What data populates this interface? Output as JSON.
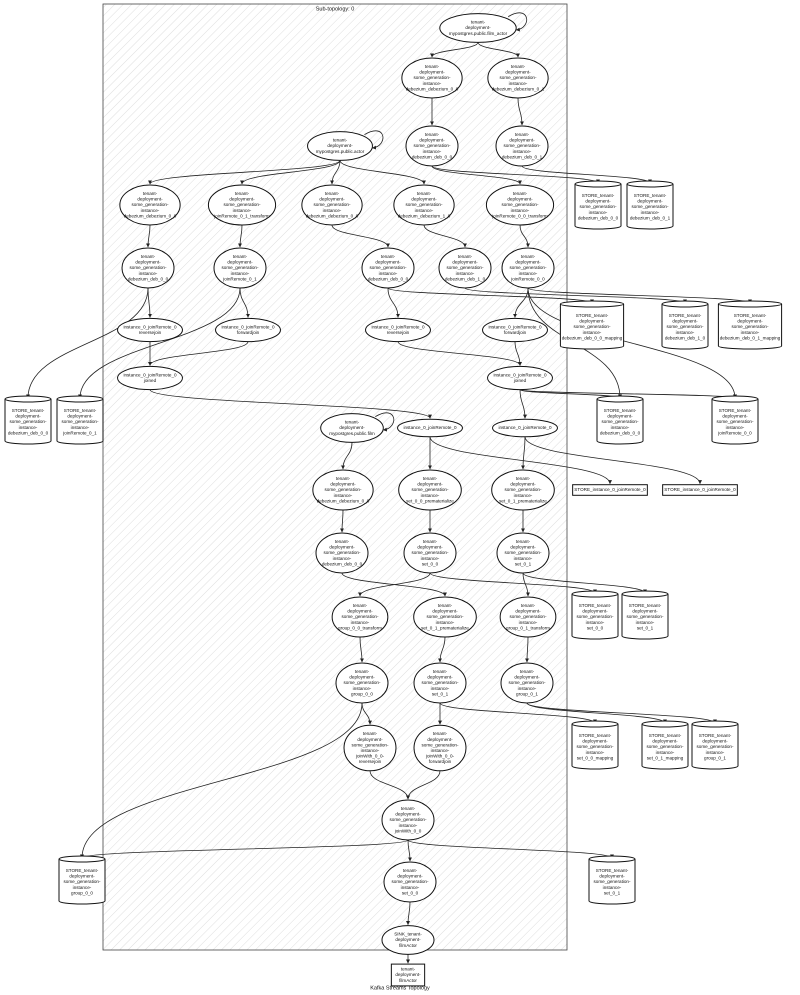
{
  "title": "Sub-topology: 0",
  "caption": "Kafka Streams Topology",
  "nodes": [
    {
      "lines": [
        "tenant-",
        "deployment-",
        "mypostgres.public.film_actor"
      ]
    },
    {
      "lines": [
        "tenant-",
        "deployment-",
        "some_generation-",
        "instance-",
        "debezium_debezium_0_0"
      ]
    },
    {
      "lines": [
        "tenant-",
        "deployment-",
        "some_generation-",
        "instance-",
        "debezium_debezium_0_1"
      ]
    },
    {
      "lines": [
        "tenant-",
        "deployment-",
        "mypostgres.public.actor"
      ]
    },
    {
      "lines": [
        "tenant-",
        "deployment-",
        "some_generation-",
        "instance-",
        "debezium_deb_0_0"
      ]
    },
    {
      "lines": [
        "tenant-",
        "deployment-",
        "some_generation-",
        "instance-",
        "debezium_deb_0_1"
      ]
    },
    {
      "lines": [
        "STORE_tenant-",
        "deployment-",
        "some_generation-",
        "instance-",
        "debezium_deb_0_0"
      ]
    },
    {
      "lines": [
        "STORE_tenant-",
        "deployment-",
        "some_generation-",
        "instance-",
        "debezium_deb_0_1"
      ]
    },
    {
      "lines": [
        "tenant-",
        "deployment-",
        "some_generation-",
        "instance-",
        "debezium_debezium_0_0"
      ]
    },
    {
      "lines": [
        "tenant-",
        "deployment-",
        "some_generation-",
        "instance-",
        "joinRemote_0_1_transform"
      ]
    },
    {
      "lines": [
        "tenant-",
        "deployment-",
        "some_generation-",
        "instance-",
        "debezium_debezium_0_0"
      ]
    },
    {
      "lines": [
        "tenant-",
        "deployment-",
        "some_generation-",
        "instance-",
        "debezium_debezium_1_0"
      ]
    },
    {
      "lines": [
        "tenant-",
        "deployment-",
        "some_generation-",
        "instance-",
        "joinRemote_0_0_transform"
      ]
    },
    {
      "lines": [
        "tenant-",
        "deployment-",
        "some_generation-",
        "instance-",
        "debezium_deb_0_0"
      ]
    },
    {
      "lines": [
        "tenant-",
        "deployment-",
        "some_generation-",
        "instance-",
        "joinRemote_0_1"
      ]
    },
    {
      "lines": [
        "tenant-",
        "deployment-",
        "some_generation-",
        "instance-",
        "debezium_deb_0_0"
      ]
    },
    {
      "lines": [
        "tenant-",
        "deployment-",
        "some_generation-",
        "instance-",
        "debezium_deb_1_0"
      ]
    },
    {
      "lines": [
        "tenant-",
        "deployment-",
        "some_generation-",
        "instance-",
        "joinRemote_0_0"
      ]
    },
    {
      "lines": [
        "STORE_tenant-",
        "deployment-",
        "some_generation-",
        "instance-",
        "debezium_deb_0_0_mapping"
      ]
    },
    {
      "lines": [
        "STORE_tenant-",
        "deployment-",
        "some_generation-",
        "instance-",
        "debezium_deb_1_0"
      ]
    },
    {
      "lines": [
        "STORE_tenant-",
        "deployment-",
        "some_generation-",
        "instance-",
        "debezium_deb_0_1_mapping"
      ]
    },
    {
      "lines": [
        "instance_0_joinRemote_0",
        "reversejoin"
      ]
    },
    {
      "lines": [
        "instance_0_joinRemote_0",
        "forwardjoin"
      ]
    },
    {
      "lines": [
        "instance_0_joinRemote_0",
        "reversejoin"
      ]
    },
    {
      "lines": [
        "instance_0_joinRemote_0",
        "forwardjoin"
      ]
    },
    {
      "lines": [
        "instance_0_joinRemote_0",
        "joined"
      ]
    },
    {
      "lines": [
        "instance_0_joinRemote_0",
        "joined"
      ]
    },
    {
      "lines": [
        "STORE_tenant-",
        "deployment-",
        "some_generation-",
        "instance-",
        "debezium_deb_0_0"
      ]
    },
    {
      "lines": [
        "STORE_tenant-",
        "deployment-",
        "some_generation-",
        "instance-",
        "joinRemote_0_1"
      ]
    },
    {
      "lines": [
        "STORE_tenant-",
        "deployment-",
        "some_generation-",
        "instance-",
        "debezium_deb_0_0"
      ]
    },
    {
      "lines": [
        "STORE_tenant-",
        "deployment-",
        "some_generation-",
        "instance-",
        "joinRemote_0_0"
      ]
    },
    {
      "lines": [
        "tenant-",
        "deployment-",
        "mypostgres.public.film"
      ]
    },
    {
      "lines": [
        "instance_0_joinRemote_0"
      ]
    },
    {
      "lines": [
        "instance_0_joinRemote_0"
      ]
    },
    {
      "lines": [
        "STORE_instance_0_joinRemote_0"
      ]
    },
    {
      "lines": [
        "STORE_instance_0_joinRemote_0"
      ]
    },
    {
      "lines": [
        "tenant-",
        "deployment-",
        "some_generation-",
        "instance-",
        "debezium_debezium_0_0"
      ]
    },
    {
      "lines": [
        "tenant-",
        "deployment-",
        "some_generation-",
        "instance-",
        "set_0_0_prematerialize"
      ]
    },
    {
      "lines": [
        "tenant-",
        "deployment-",
        "some_generation-",
        "instance-",
        "set_0_1_prematerialize"
      ]
    },
    {
      "lines": [
        "tenant-",
        "deployment-",
        "some_generation-",
        "instance-",
        "debezium_deb_0_0"
      ]
    },
    {
      "lines": [
        "tenant-",
        "deployment-",
        "some_generation-",
        "instance-",
        "set_0_0"
      ]
    },
    {
      "lines": [
        "tenant-",
        "deployment-",
        "some_generation-",
        "instance-",
        "set_0_1"
      ]
    },
    {
      "lines": [
        "STORE_tenant-",
        "deployment-",
        "some_generation-",
        "instance-",
        "set_0_0"
      ]
    },
    {
      "lines": [
        "STORE_tenant-",
        "deployment-",
        "some_generation-",
        "instance-",
        "set_0_1"
      ]
    },
    {
      "lines": [
        "tenant-",
        "deployment-",
        "some_generation-",
        "instance-",
        "group_0_0_transform"
      ]
    },
    {
      "lines": [
        "tenant-",
        "deployment-",
        "some_generation-",
        "instance-",
        "set_0_1_prematerialize"
      ]
    },
    {
      "lines": [
        "tenant-",
        "deployment-",
        "some_generation-",
        "instance-",
        "group_0_1_transform"
      ]
    },
    {
      "lines": [
        "tenant-",
        "deployment-",
        "some_generation-",
        "instance-",
        "group_0_0"
      ]
    },
    {
      "lines": [
        "tenant-",
        "deployment-",
        "some_generation-",
        "instance-",
        "set_0_1"
      ]
    },
    {
      "lines": [
        "tenant-",
        "deployment-",
        "some_generation-",
        "instance-",
        "group_0_1"
      ]
    },
    {
      "lines": [
        "STORE_tenant-",
        "deployment-",
        "some_generation-",
        "instance-",
        "set_0_0_mapping"
      ]
    },
    {
      "lines": [
        "STORE_tenant-",
        "deployment-",
        "some_generation-",
        "instance-",
        "set_0_1_mapping"
      ]
    },
    {
      "lines": [
        "STORE_tenant-",
        "deployment-",
        "some_generation-",
        "instance-",
        "group_0_1"
      ]
    },
    {
      "lines": [
        "tenant-",
        "deployment-",
        "some_generation-",
        "instance-",
        "joinWith_0_0-",
        "reversejoin"
      ]
    },
    {
      "lines": [
        "tenant-",
        "deployment-",
        "some_generation-",
        "instance-",
        "joinWith_0_0-",
        "forwardjoin"
      ]
    },
    {
      "lines": [
        "tenant-",
        "deployment-",
        "some_generation-",
        "instance-",
        "joinWith_0_0"
      ]
    },
    {
      "lines": [
        "STORE_tenant-",
        "deployment-",
        "some_generation-",
        "instance-",
        "group_0_0"
      ]
    },
    {
      "lines": [
        "STORE_tenant-",
        "deployment-",
        "some_generation-",
        "instance-",
        "set_0_1"
      ]
    },
    {
      "lines": [
        "tenant-",
        "deployment-",
        "some_generation-",
        "instance-",
        "set_0_0"
      ]
    },
    {
      "lines": [
        "SINK_tenant-",
        "deployment-",
        "filmActor"
      ]
    },
    {
      "lines": [
        "tenant-",
        "deployment-",
        "filmActor"
      ]
    }
  ]
}
